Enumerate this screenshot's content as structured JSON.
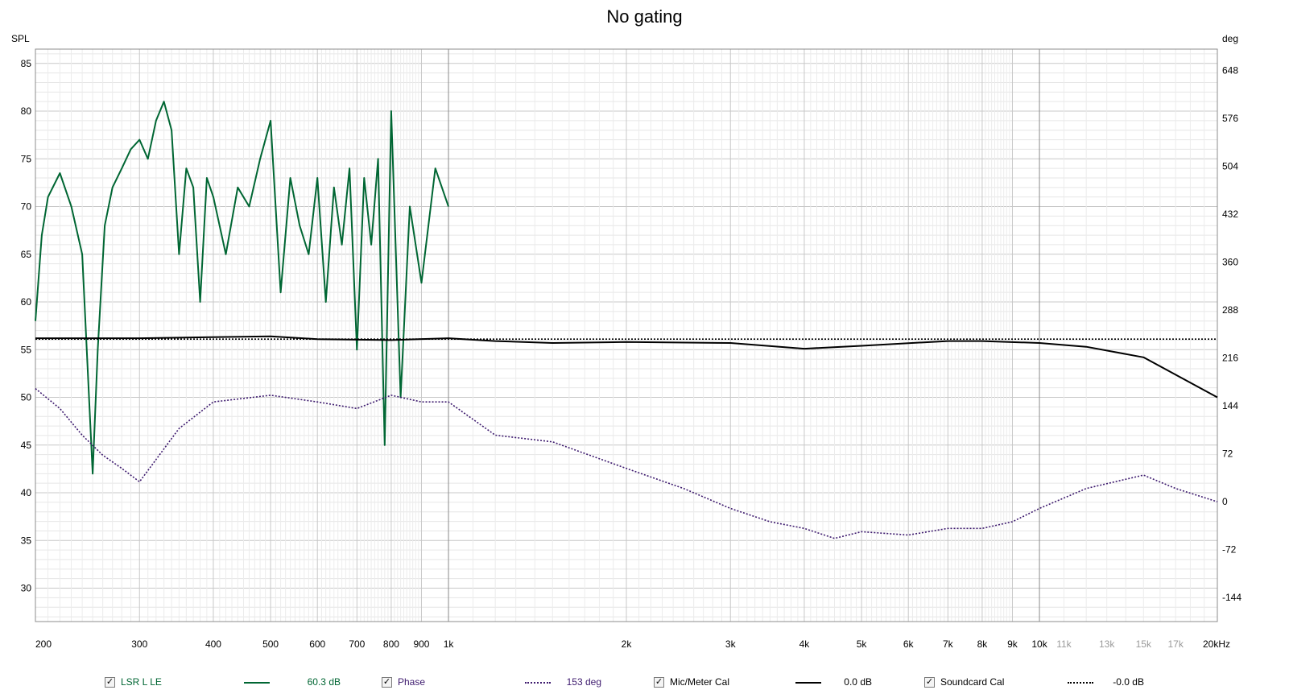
{
  "chart_data": {
    "type": "line",
    "title": "No gating",
    "left_axis": {
      "label": "SPL",
      "ylim": [
        26.5,
        86.5
      ],
      "ticks": [
        85,
        80,
        75,
        70,
        65,
        60,
        55,
        50,
        45,
        40,
        35,
        30
      ]
    },
    "right_axis": {
      "label": "deg",
      "ylim": [
        -180,
        680
      ],
      "ticks": [
        648,
        576,
        504,
        432,
        360,
        288,
        216,
        144,
        72,
        0,
        -72,
        -144
      ]
    },
    "x_axis": {
      "scale": "log",
      "xlim": [
        200,
        20000
      ],
      "major_ticks": [
        {
          "v": 200,
          "t": "200"
        },
        {
          "v": 300,
          "t": "300"
        },
        {
          "v": 400,
          "t": "400"
        },
        {
          "v": 500,
          "t": "500"
        },
        {
          "v": 600,
          "t": "600"
        },
        {
          "v": 700,
          "t": "700"
        },
        {
          "v": 800,
          "t": "800"
        },
        {
          "v": 900,
          "t": "900"
        },
        {
          "v": 1000,
          "t": "1k"
        },
        {
          "v": 2000,
          "t": "2k"
        },
        {
          "v": 3000,
          "t": "3k"
        },
        {
          "v": 4000,
          "t": "4k"
        },
        {
          "v": 5000,
          "t": "5k"
        },
        {
          "v": 6000,
          "t": "6k"
        },
        {
          "v": 7000,
          "t": "7k"
        },
        {
          "v": 8000,
          "t": "8k"
        },
        {
          "v": 9000,
          "t": "9k"
        },
        {
          "v": 10000,
          "t": "10k"
        },
        {
          "v": 20000,
          "t": "20kHz"
        }
      ],
      "minor_ticks": [
        {
          "v": 11000,
          "t": "11k"
        },
        {
          "v": 13000,
          "t": "13k"
        },
        {
          "v": 15000,
          "t": "15k"
        },
        {
          "v": 17000,
          "t": "17k"
        }
      ]
    },
    "series": [
      {
        "name": "LSR L LE",
        "axis": "left",
        "color": "#006633",
        "style": "solid",
        "x": [
          200,
          205,
          210,
          220,
          230,
          240,
          250,
          255,
          262,
          270,
          280,
          290,
          300,
          310,
          320,
          330,
          340,
          350,
          360,
          370,
          380,
          390,
          400,
          420,
          440,
          460,
          480,
          500,
          520,
          540,
          560,
          580,
          600,
          620,
          640,
          660,
          680,
          700,
          720,
          740,
          760,
          780,
          800,
          830,
          860,
          900,
          950,
          1000
        ],
        "y": [
          58,
          67,
          71,
          73.5,
          70,
          65,
          42,
          55,
          68,
          72,
          74,
          76,
          77,
          75,
          79,
          81,
          78,
          65,
          74,
          72,
          60,
          73,
          71,
          65,
          72,
          70,
          75,
          79,
          61,
          73,
          68,
          65,
          73,
          60,
          72,
          66,
          74,
          55,
          73,
          66,
          75,
          45,
          80,
          50,
          70,
          62,
          74,
          70
        ]
      },
      {
        "name": "Mic/Meter Cal",
        "axis": "left",
        "color": "#000000",
        "style": "solid",
        "x": [
          200,
          300,
          500,
          600,
          800,
          1000,
          1200,
          1500,
          2000,
          3000,
          4000,
          5000,
          7000,
          8000,
          10000,
          12000,
          15000,
          20000
        ],
        "y": [
          56.2,
          56.2,
          56.4,
          56.1,
          56,
          56.2,
          55.9,
          55.7,
          55.8,
          55.7,
          55.1,
          55.4,
          55.9,
          55.9,
          55.7,
          55.3,
          54.2,
          50
        ]
      },
      {
        "name": "Soundcard Cal",
        "axis": "left",
        "color": "#000000",
        "style": "dotted",
        "x": [
          200,
          20000
        ],
        "y": [
          56.1,
          56.1
        ]
      },
      {
        "name": "Phase",
        "axis": "right",
        "color": "#3d1a6e",
        "style": "dotted",
        "x": [
          200,
          220,
          240,
          260,
          280,
          300,
          350,
          400,
          500,
          600,
          700,
          800,
          900,
          1000,
          1200,
          1500,
          2000,
          2500,
          3000,
          3500,
          4000,
          4500,
          5000,
          6000,
          7000,
          8000,
          9000,
          10000,
          12000,
          15000,
          17000,
          20000
        ],
        "y": [
          170,
          140,
          100,
          70,
          50,
          30,
          110,
          150,
          160,
          150,
          140,
          160,
          150,
          150,
          100,
          90,
          50,
          20,
          -10,
          -30,
          -40,
          -55,
          -45,
          -50,
          -40,
          -40,
          -30,
          -10,
          20,
          40,
          20,
          0
        ]
      }
    ]
  },
  "legend": [
    {
      "label": "LSR L LE",
      "value": "60.3 dB",
      "color": "#006633",
      "style": "solid",
      "checked": true
    },
    {
      "label": "Phase",
      "value": "153 deg",
      "color": "#3d1a6e",
      "style": "dotted",
      "checked": true
    },
    {
      "label": "Mic/Meter Cal",
      "value": "0.0 dB",
      "color": "#000000",
      "style": "solid",
      "checked": true
    },
    {
      "label": "Soundcard Cal",
      "value": "-0.0 dB",
      "color": "#000000",
      "style": "dotted",
      "checked": true
    }
  ],
  "check_glyph": "✓"
}
